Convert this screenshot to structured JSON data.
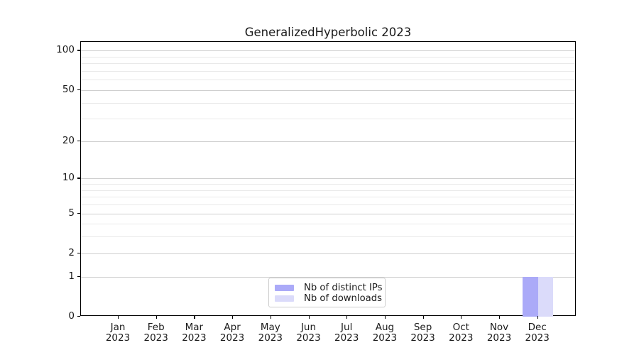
{
  "title": "GeneralizedHyperbolic 2023",
  "chart_data": {
    "type": "bar",
    "title": "GeneralizedHyperbolic 2023",
    "categories": [
      "Jan",
      "Feb",
      "Mar",
      "Apr",
      "May",
      "Jun",
      "Jul",
      "Aug",
      "Sep",
      "Oct",
      "Nov",
      "Dec"
    ],
    "year_label": "2023",
    "series": [
      {
        "name": "Nb of distinct IPs",
        "color": "#abaaf8",
        "values": [
          0,
          0,
          0,
          0,
          0,
          0,
          0,
          0,
          0,
          0,
          0,
          1
        ]
      },
      {
        "name": "Nb of downloads",
        "color": "#dbdbfa",
        "values": [
          0,
          0,
          0,
          0,
          0,
          0,
          0,
          0,
          0,
          0,
          0,
          1
        ]
      }
    ],
    "xlabel": "",
    "ylabel": "",
    "yscale": "log1p",
    "ylim": [
      0,
      112
    ],
    "y_major_ticks": [
      0,
      1,
      2,
      5,
      10,
      20,
      50,
      100
    ],
    "y_minor_ticks": [
      3,
      4,
      6,
      7,
      8,
      9,
      30,
      40,
      60,
      70,
      80,
      90
    ],
    "grid": "horizontal-on",
    "legend_position": "lower-center-inside"
  },
  "colors": {
    "spine": "#000000",
    "major_grid": "#cfcfcf",
    "minor_grid": "#e9e9e9",
    "background": "#ffffff",
    "text": "#1a1a1a"
  }
}
